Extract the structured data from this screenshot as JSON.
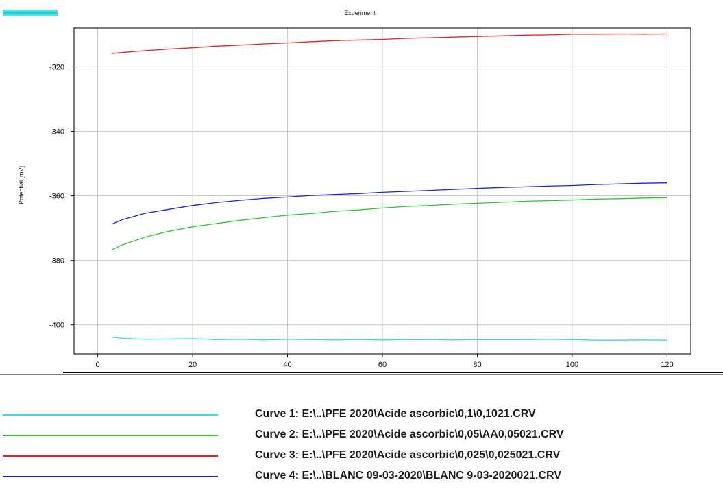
{
  "chart_data": {
    "type": "line",
    "title": "Experiment",
    "xlabel": "",
    "ylabel": "Potential [mV]",
    "xlim": [
      -5,
      125
    ],
    "ylim": [
      -409,
      -308
    ],
    "xticks": [
      0,
      20,
      40,
      60,
      80,
      100,
      120
    ],
    "yticks": [
      -320,
      -340,
      -360,
      -380,
      -400
    ],
    "grid": true,
    "legend_swatch_color": "#4fe0e8",
    "series": [
      {
        "name": "Curve 1: E:\\..\\PFE 2020\\Acide ascorbic\\0,1\\0,1021.CRV",
        "color": "#33dce6",
        "x": [
          3,
          5,
          10,
          15,
          20,
          25,
          30,
          35,
          40,
          45,
          50,
          55,
          60,
          65,
          70,
          75,
          80,
          85,
          90,
          95,
          100,
          105,
          110,
          115,
          120
        ],
        "y": [
          -403.8,
          -404.2,
          -404.5,
          -404.4,
          -404.3,
          -404.6,
          -404.5,
          -404.7,
          -404.5,
          -404.6,
          -404.7,
          -404.6,
          -404.7,
          -404.6,
          -404.6,
          -404.7,
          -404.6,
          -404.6,
          -404.6,
          -404.5,
          -404.6,
          -404.8,
          -404.8,
          -404.7,
          -404.8
        ]
      },
      {
        "name": "Curve 2: E:\\..\\PFE 2020\\Acide ascorbic\\0,05\\AA0,05021.CRV",
        "color": "#28c828",
        "x": [
          3,
          5,
          10,
          15,
          20,
          25,
          30,
          35,
          40,
          45,
          50,
          55,
          60,
          65,
          70,
          75,
          80,
          85,
          90,
          95,
          100,
          105,
          110,
          115,
          120
        ],
        "y": [
          -376.7,
          -375.3,
          -372.8,
          -371.0,
          -369.6,
          -368.6,
          -367.6,
          -366.8,
          -366.0,
          -365.5,
          -364.8,
          -364.4,
          -363.8,
          -363.3,
          -363.0,
          -362.6,
          -362.3,
          -362.0,
          -361.7,
          -361.5,
          -361.3,
          -361.0,
          -360.9,
          -360.7,
          -360.6
        ]
      },
      {
        "name": "Curve 3: E:\\..\\PFE 2020\\Acide ascorbic\\0,025\\0,025021.CRV",
        "color": "#e82020",
        "x": [
          3,
          5,
          10,
          15,
          20,
          25,
          30,
          35,
          40,
          45,
          50,
          55,
          60,
          65,
          70,
          75,
          80,
          85,
          90,
          95,
          100,
          105,
          110,
          115,
          120
        ],
        "y": [
          -315.9,
          -315.6,
          -315.0,
          -314.5,
          -314.1,
          -313.6,
          -313.3,
          -312.9,
          -312.6,
          -312.2,
          -311.9,
          -311.7,
          -311.5,
          -311.2,
          -311.0,
          -310.8,
          -310.6,
          -310.4,
          -310.2,
          -310.1,
          -309.9,
          -309.9,
          -309.8,
          -309.9,
          -309.8
        ]
      },
      {
        "name": "Curve 4: E:\\..\\BLANC 09-03-2020\\BLANC 9-03-2020021.CRV",
        "color": "#2020d8",
        "x": [
          3,
          5,
          10,
          15,
          20,
          25,
          30,
          35,
          40,
          45,
          50,
          55,
          60,
          65,
          70,
          75,
          80,
          85,
          90,
          95,
          100,
          105,
          110,
          115,
          120
        ],
        "y": [
          -368.8,
          -367.5,
          -365.4,
          -364.2,
          -363.0,
          -362.1,
          -361.4,
          -360.8,
          -360.4,
          -359.9,
          -359.6,
          -359.3,
          -358.9,
          -358.6,
          -358.3,
          -358.0,
          -357.7,
          -357.4,
          -357.2,
          -357.0,
          -356.8,
          -356.5,
          -356.3,
          -356.1,
          -356.0
        ]
      }
    ]
  }
}
